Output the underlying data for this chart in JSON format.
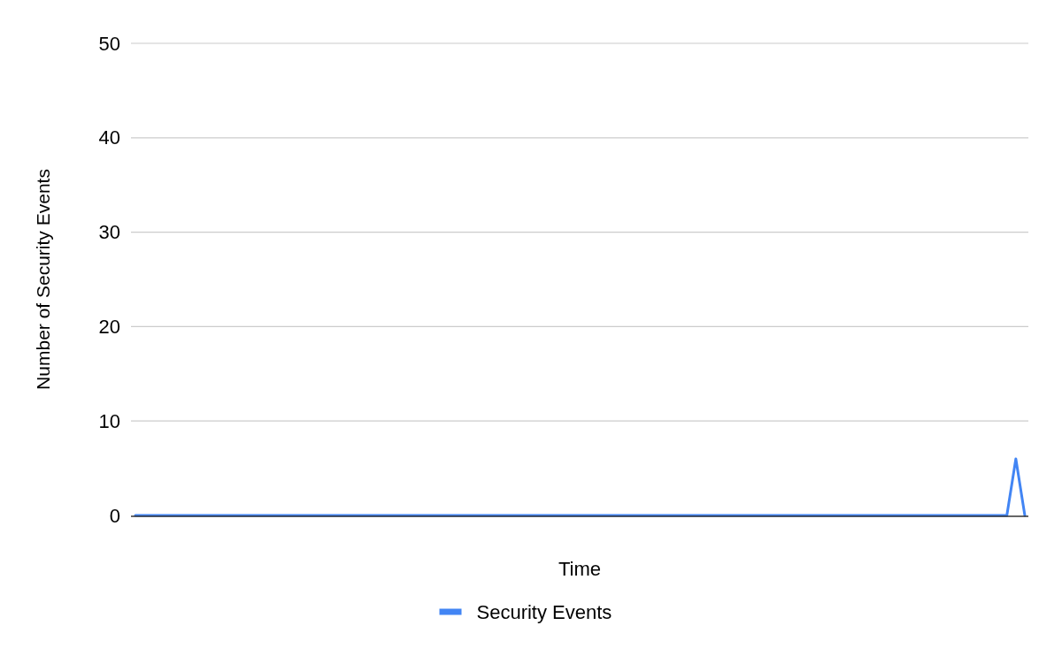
{
  "chart_data": {
    "type": "line",
    "xlabel": "Time",
    "ylabel": "Number of Security Events",
    "categories": [
      null,
      null,
      null,
      null,
      null,
      null,
      null,
      null,
      null,
      null,
      null,
      null,
      null,
      null,
      null,
      null,
      null,
      null,
      null,
      null,
      null,
      null,
      null,
      null,
      null,
      null,
      null,
      null,
      null,
      null,
      null,
      null,
      null,
      null,
      null,
      null,
      null,
      null,
      null,
      null,
      null,
      null,
      null,
      null,
      null,
      null,
      null,
      null,
      null,
      null,
      null,
      null,
      null,
      null,
      null,
      null,
      null,
      null,
      null,
      null,
      null,
      null,
      null,
      null,
      null,
      null,
      null,
      null,
      null,
      null,
      null,
      null,
      null,
      null,
      null,
      null,
      null,
      null,
      null,
      null,
      null,
      null,
      null,
      null,
      null,
      null,
      null,
      null,
      null,
      null,
      null,
      null,
      null,
      null,
      null,
      null,
      null,
      null,
      null,
      null
    ],
    "series": [
      {
        "name": "Security Events",
        "color": "#4285f4",
        "values": [
          0,
          0,
          0,
          0,
          0,
          0,
          0,
          0,
          0,
          0,
          0,
          0,
          0,
          0,
          0,
          0,
          0,
          0,
          0,
          0,
          0,
          0,
          0,
          0,
          0,
          0,
          0,
          0,
          0,
          0,
          0,
          0,
          0,
          0,
          0,
          0,
          0,
          0,
          0,
          0,
          0,
          0,
          0,
          0,
          0,
          0,
          0,
          0,
          0,
          0,
          0,
          0,
          0,
          0,
          0,
          0,
          0,
          0,
          0,
          0,
          0,
          0,
          0,
          0,
          0,
          0,
          0,
          0,
          0,
          0,
          0,
          0,
          0,
          0,
          0,
          0,
          0,
          0,
          0,
          0,
          0,
          0,
          0,
          0,
          0,
          0,
          0,
          0,
          0,
          0,
          0,
          0,
          0,
          0,
          0,
          0,
          0,
          0,
          6,
          0
        ]
      }
    ],
    "ylim": [
      0,
      50
    ],
    "yticks": [
      0,
      10,
      20,
      30,
      40,
      50
    ],
    "grid": "y",
    "legend": "bottom"
  }
}
